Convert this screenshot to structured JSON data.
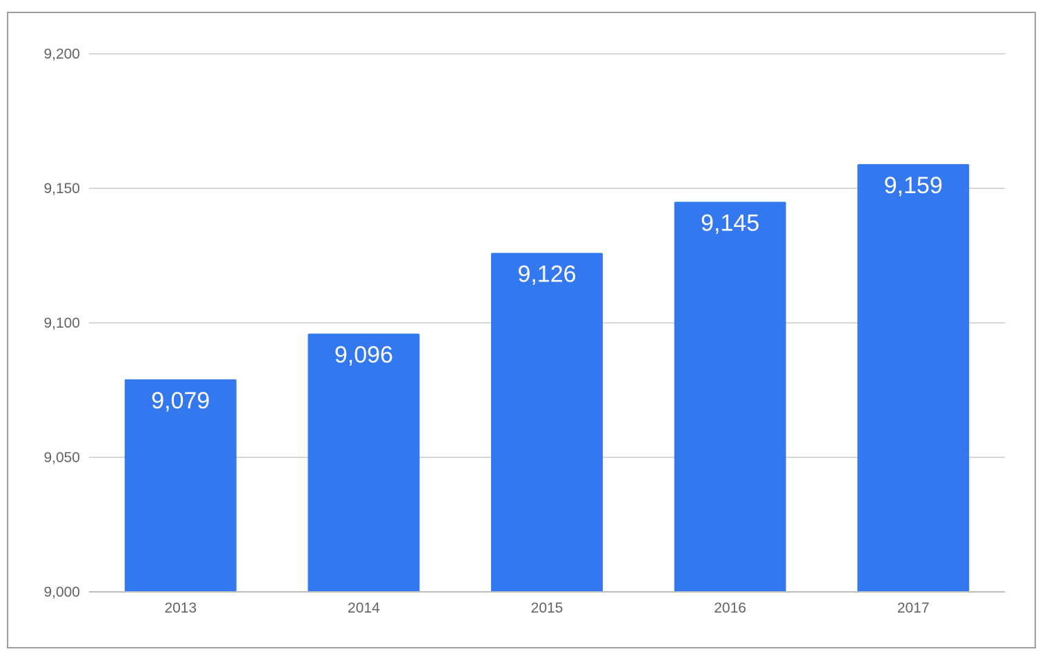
{
  "chart_data": {
    "type": "bar",
    "title": "",
    "xlabel": "",
    "ylabel": "",
    "categories": [
      "2013",
      "2014",
      "2015",
      "2016",
      "2017"
    ],
    "values": [
      9079,
      9096,
      9126,
      9145,
      9159
    ],
    "data_labels": [
      "9,079",
      "9,096",
      "9,126",
      "9,145",
      "9,159"
    ],
    "ylim": [
      9000,
      9200
    ],
    "y_ticks": [
      9000,
      9050,
      9100,
      9150,
      9200
    ],
    "y_tick_labels": [
      "9,000",
      "9,050",
      "9,100",
      "9,150",
      "9,200"
    ],
    "grid": true,
    "legend": "none",
    "colors": {
      "bar": "#3478f0",
      "grid": "#cccccc",
      "tick_text": "#5f6368",
      "data_label_text": "#ffffff",
      "frame": "#9e9e9e"
    }
  }
}
